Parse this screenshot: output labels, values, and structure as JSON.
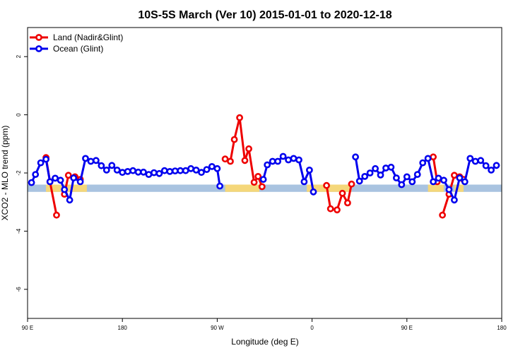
{
  "chart_data": {
    "type": "line",
    "title": "10S-5S March (Ver 10)   2015-01-01 to 2020-12-18",
    "xlabel": "Longitude (deg E)",
    "ylabel": "XCO2 - MLO trend (ppm)",
    "xlim": [
      90,
      450
    ],
    "ylim": [
      -7,
      3
    ],
    "x_ticks": [
      {
        "value": 90,
        "label": "90 E"
      },
      {
        "value": 162,
        "label": "180"
      },
      {
        "value": 234,
        "label": "90 W"
      },
      {
        "value": 306,
        "label": "0"
      },
      {
        "value": 378,
        "label": "90 E"
      },
      {
        "value": 450,
        "label": "180"
      }
    ],
    "y_ticks": [
      {
        "value": 2,
        "label": "2"
      },
      {
        "value": 0,
        "label": "0"
      },
      {
        "value": -2,
        "label": "-2"
      },
      {
        "value": -4,
        "label": "-4"
      },
      {
        "value": -6,
        "label": "-6"
      }
    ],
    "grid": false,
    "legend_position": "top-left",
    "band": {
      "y_min": -2.65,
      "y_max": -2.4,
      "ocean_color": "#a9c3e0",
      "land_color": "#f5d77a",
      "land_spans": [
        [
          104,
          116
        ],
        [
          120,
          135
        ],
        [
          240,
          266
        ],
        [
          302,
          336
        ],
        [
          394,
          406
        ],
        [
          414,
          421
        ]
      ]
    },
    "series": [
      {
        "name": "Land (Nadir&Glint)",
        "color": "#ee0000",
        "segments": [
          [
            [
              104,
              -1.47
            ],
            [
              107,
              -2.3
            ],
            [
              112,
              -3.45
            ]
          ],
          [
            [
              118,
              -2.73
            ],
            [
              121,
              -2.08
            ],
            [
              126,
              -2.13
            ],
            [
              130,
              -2.22
            ]
          ],
          [
            [
              240,
              -1.52
            ],
            [
              244,
              -1.6
            ],
            [
              247,
              -0.85
            ],
            [
              251,
              -0.1
            ],
            [
              255,
              -1.57
            ],
            [
              258,
              -1.17
            ],
            [
              262,
              -2.32
            ],
            [
              265,
              -2.12
            ],
            [
              268,
              -2.47
            ]
          ],
          [
            [
              317,
              -2.43
            ],
            [
              320,
              -3.23
            ],
            [
              325,
              -3.27
            ],
            [
              329,
              -2.7
            ],
            [
              333,
              -3.03
            ],
            [
              336,
              -2.38
            ]
          ],
          [
            [
              398,
              -1.45
            ],
            [
              401,
              -2.3
            ]
          ],
          [
            [
              405,
              -3.45
            ],
            [
              410,
              -2.73
            ],
            [
              414,
              -2.08
            ],
            [
              418,
              -2.13
            ],
            [
              421,
              -2.22
            ]
          ]
        ]
      },
      {
        "name": "Ocean (Glint)",
        "color": "#0000ee",
        "segments": [
          [
            [
              93,
              -2.33
            ],
            [
              96,
              -2.05
            ],
            [
              100,
              -1.65
            ],
            [
              104,
              -1.53
            ],
            [
              107,
              -2.3
            ]
          ],
          [
            [
              111,
              -2.18
            ],
            [
              115,
              -2.25
            ],
            [
              118,
              -2.57
            ],
            [
              122,
              -2.93
            ],
            [
              125,
              -2.17
            ],
            [
              130,
              -2.3
            ],
            [
              134,
              -1.5
            ],
            [
              138,
              -1.6
            ],
            [
              142,
              -1.57
            ],
            [
              146,
              -1.75
            ],
            [
              150,
              -1.9
            ],
            [
              154,
              -1.74
            ],
            [
              158,
              -1.9
            ],
            [
              162,
              -1.98
            ],
            [
              166,
              -1.95
            ],
            [
              170,
              -1.92
            ],
            [
              174,
              -1.97
            ],
            [
              178,
              -1.97
            ],
            [
              182,
              -2.05
            ],
            [
              186,
              -1.99
            ],
            [
              190,
              -2.02
            ],
            [
              194,
              -1.92
            ],
            [
              198,
              -1.95
            ],
            [
              202,
              -1.93
            ],
            [
              206,
              -1.92
            ],
            [
              210,
              -1.92
            ],
            [
              214,
              -1.85
            ],
            [
              218,
              -1.9
            ],
            [
              222,
              -1.98
            ],
            [
              226,
              -1.88
            ],
            [
              230,
              -1.78
            ],
            [
              234,
              -1.85
            ],
            [
              236,
              -2.45
            ]
          ],
          [
            [
              269,
              -2.22
            ],
            [
              272,
              -1.72
            ],
            [
              276,
              -1.6
            ],
            [
              280,
              -1.6
            ],
            [
              284,
              -1.43
            ],
            [
              288,
              -1.55
            ],
            [
              292,
              -1.5
            ],
            [
              296,
              -1.55
            ],
            [
              300,
              -2.3
            ],
            [
              304,
              -1.9
            ],
            [
              307,
              -2.65
            ]
          ],
          [
            [
              339,
              -1.45
            ],
            [
              342,
              -2.28
            ],
            [
              346,
              -2.12
            ],
            [
              350,
              -2.0
            ],
            [
              354,
              -1.85
            ],
            [
              358,
              -2.07
            ],
            [
              362,
              -1.83
            ],
            [
              366,
              -1.8
            ],
            [
              370,
              -2.17
            ],
            [
              374,
              -2.4
            ],
            [
              378,
              -2.13
            ],
            [
              382,
              -2.3
            ],
            [
              386,
              -2.05
            ],
            [
              390,
              -1.65
            ],
            [
              394,
              -1.5
            ],
            [
              398,
              -2.3
            ],
            [
              402,
              -2.18
            ],
            [
              406,
              -2.25
            ],
            [
              410,
              -2.57
            ],
            [
              414,
              -2.93
            ],
            [
              418,
              -2.17
            ],
            [
              422,
              -2.3
            ],
            [
              426,
              -1.5
            ],
            [
              430,
              -1.6
            ],
            [
              434,
              -1.57
            ],
            [
              438,
              -1.75
            ],
            [
              442,
              -1.9
            ],
            [
              446,
              -1.74
            ]
          ]
        ]
      }
    ]
  }
}
